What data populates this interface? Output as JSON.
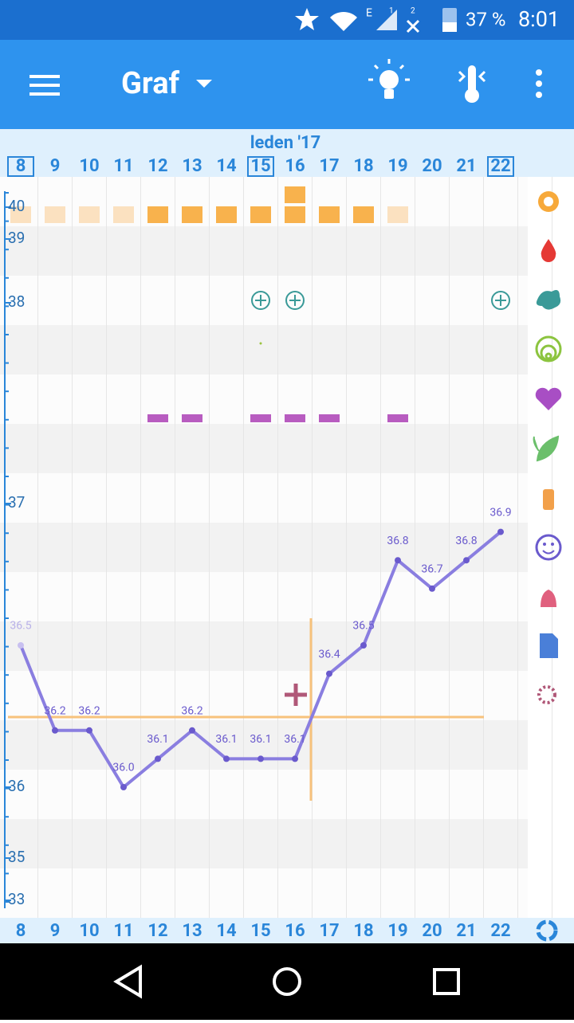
{
  "status_bar": {
    "network": "E",
    "sim1": "1",
    "sim2": "2",
    "battery": "37 %",
    "time": "8:01"
  },
  "toolbar": {
    "title": "Graf"
  },
  "chart_data": {
    "type": "line",
    "title": "leden '17",
    "categories": [
      "8",
      "9",
      "10",
      "11",
      "12",
      "13",
      "14",
      "15",
      "16",
      "17",
      "18",
      "19",
      "20",
      "21",
      "22"
    ],
    "values": [
      36.5,
      36.2,
      36.2,
      36.0,
      36.1,
      36.2,
      36.1,
      36.1,
      36.1,
      36.4,
      36.5,
      36.8,
      36.7,
      36.8,
      36.9
    ],
    "value_labels": [
      "36.5",
      "36.2",
      "36.2",
      "36.0",
      "36.1",
      "36.2",
      "36.1",
      "36.1",
      "36.1",
      "36.4",
      "36.5",
      "36.8",
      "36.7",
      "36.8",
      "36.9"
    ],
    "color": "#8a7ee0",
    "ylim": [
      33,
      40
    ],
    "yticks": [
      33,
      35,
      36,
      37,
      38,
      39,
      40
    ]
  }
}
